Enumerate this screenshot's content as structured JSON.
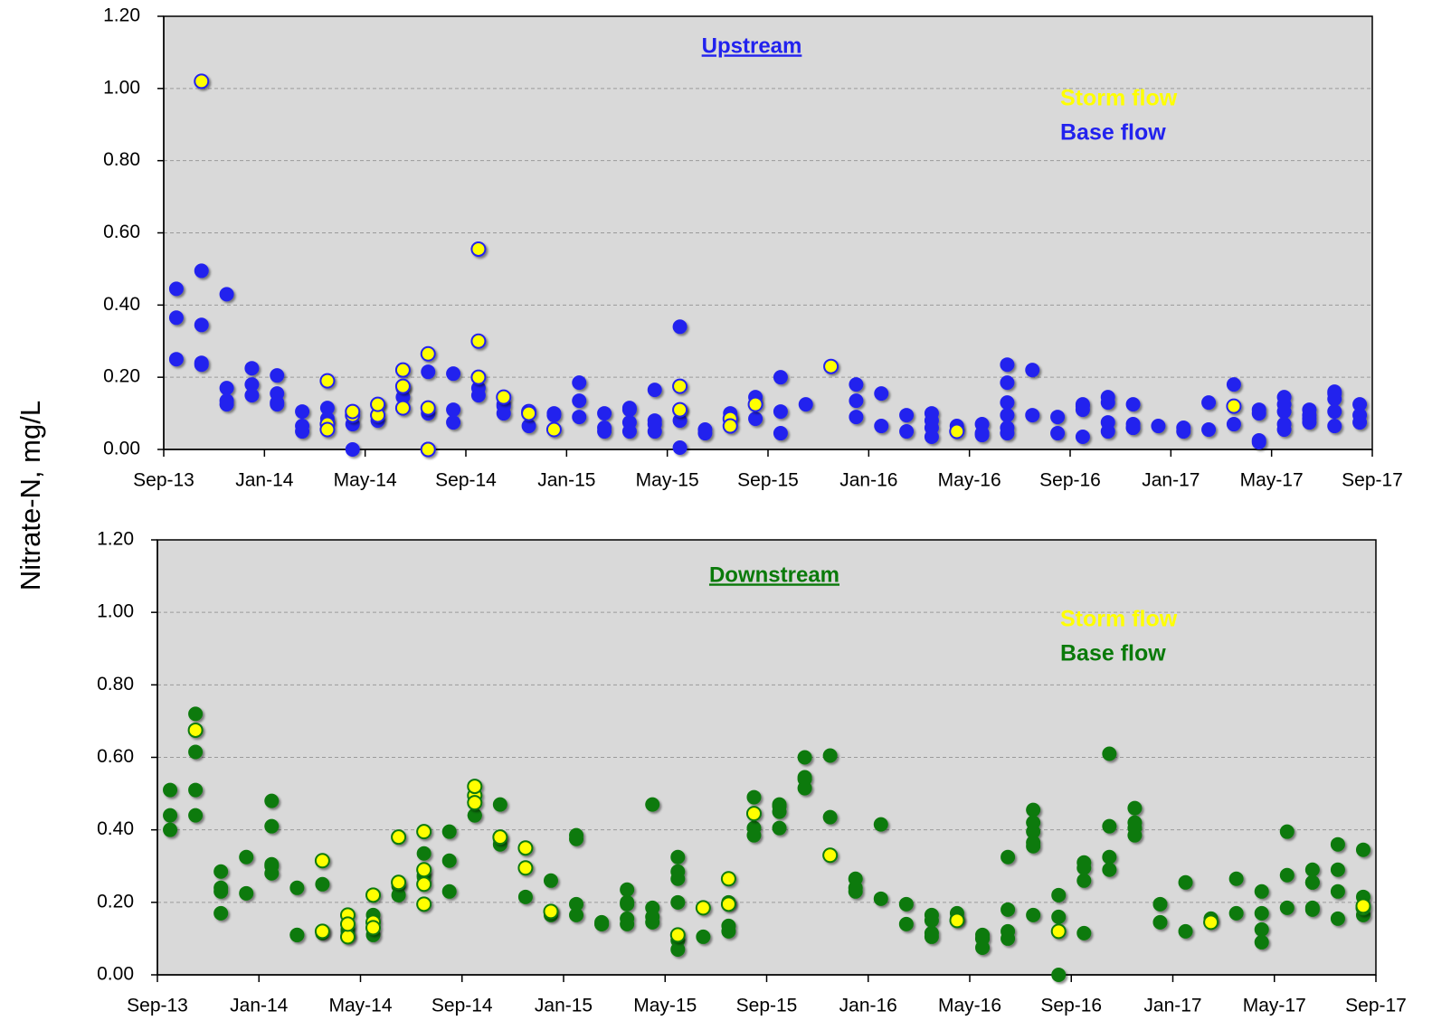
{
  "chart_data": [
    {
      "type": "scatter",
      "title": "Upstream",
      "ylabel": "Nitrate-N, mg/L",
      "xlim": [
        "2013-09",
        "2017-09"
      ],
      "xticks": [
        {
          "value": "2013-09",
          "label": "Sep-13"
        },
        {
          "value": "2014-01",
          "label": "Jan-14"
        },
        {
          "value": "2014-05",
          "label": "May-14"
        },
        {
          "value": "2014-09",
          "label": "Sep-14"
        },
        {
          "value": "2015-01",
          "label": "Jan-15"
        },
        {
          "value": "2015-05",
          "label": "May-15"
        },
        {
          "value": "2015-09",
          "label": "Sep-15"
        },
        {
          "value": "2016-01",
          "label": "Jan-16"
        },
        {
          "value": "2016-05",
          "label": "May-16"
        },
        {
          "value": "2016-09",
          "label": "Sep-16"
        },
        {
          "value": "2017-01",
          "label": "Jan-17"
        },
        {
          "value": "2017-05",
          "label": "May-17"
        },
        {
          "value": "2017-09",
          "label": "Sep-17"
        }
      ],
      "ylim": [
        0,
        1.2
      ],
      "yticks": [
        {
          "value": 0,
          "label": "0.00"
        },
        {
          "value": 0.2,
          "label": "0.20"
        },
        {
          "value": 0.4,
          "label": "0.40"
        },
        {
          "value": 0.6,
          "label": "0.60"
        },
        {
          "value": 0.8,
          "label": "0.80"
        },
        {
          "value": 1.0,
          "label": "1.00"
        },
        {
          "value": 1.2,
          "label": "1.20"
        }
      ],
      "grid": true,
      "series": [
        {
          "name": "Base flow",
          "color": "#2222ee",
          "x": [
            "2013-09",
            "2013-09",
            "2013-09",
            "2013-10",
            "2013-10",
            "2013-10",
            "2013-10",
            "2013-11",
            "2013-11",
            "2013-11",
            "2013-11",
            "2013-12",
            "2013-12",
            "2013-12",
            "2014-01",
            "2014-01",
            "2014-01",
            "2014-01",
            "2014-02",
            "2014-02",
            "2014-02",
            "2014-03",
            "2014-03",
            "2014-04",
            "2014-04",
            "2014-05",
            "2014-05",
            "2014-06",
            "2014-06",
            "2014-07",
            "2014-07",
            "2014-08",
            "2014-08",
            "2014-08",
            "2014-09",
            "2014-09",
            "2014-10",
            "2014-10",
            "2014-10",
            "2014-11",
            "2014-12",
            "2014-12",
            "2015-01",
            "2015-01",
            "2015-01",
            "2015-02",
            "2015-02",
            "2015-02",
            "2015-03",
            "2015-03",
            "2015-03",
            "2015-03",
            "2015-04",
            "2015-04",
            "2015-04",
            "2015-04",
            "2015-05",
            "2015-05",
            "2015-05",
            "2015-05",
            "2015-06",
            "2015-06",
            "2015-07",
            "2015-07",
            "2015-08",
            "2015-08",
            "2015-09",
            "2015-09",
            "2015-09",
            "2015-10",
            "2015-12",
            "2015-12",
            "2015-12",
            "2016-01",
            "2016-01",
            "2016-02",
            "2016-02",
            "2016-03",
            "2016-03",
            "2016-03",
            "2016-03",
            "2016-04",
            "2016-05",
            "2016-05",
            "2016-05",
            "2016-06",
            "2016-06",
            "2016-06",
            "2016-06",
            "2016-06",
            "2016-06",
            "2016-07",
            "2016-07",
            "2016-08",
            "2016-08",
            "2016-09",
            "2016-09",
            "2016-09",
            "2016-09",
            "2016-10",
            "2016-10",
            "2016-10",
            "2016-10",
            "2016-11",
            "2016-11",
            "2016-11",
            "2016-11",
            "2016-12",
            "2017-01",
            "2017-01",
            "2017-02",
            "2017-02",
            "2017-03",
            "2017-03",
            "2017-04",
            "2017-04",
            "2017-04",
            "2017-04",
            "2017-05",
            "2017-05",
            "2017-05",
            "2017-05",
            "2017-05",
            "2017-06",
            "2017-06",
            "2017-06",
            "2017-06",
            "2017-07",
            "2017-07",
            "2017-07",
            "2017-07",
            "2017-07",
            "2017-08",
            "2017-08",
            "2017-08"
          ],
          "values": [
            0.365,
            0.25,
            0.445,
            0.235,
            0.495,
            0.345,
            0.24,
            0.43,
            0.17,
            0.125,
            0.135,
            0.15,
            0.18,
            0.225,
            0.205,
            0.155,
            0.13,
            0.125,
            0.105,
            0.05,
            0.065,
            0.085,
            0.115,
            0,
            0.07,
            0.08,
            0.125,
            0.145,
            0.17,
            0.215,
            0.1,
            0.11,
            0.21,
            0.075,
            0.15,
            0.17,
            0.125,
            0.12,
            0.1,
            0.065,
            0.1,
            0.095,
            0.185,
            0.135,
            0.09,
            0.06,
            0.05,
            0.1,
            0.05,
            0.115,
            0.11,
            0.075,
            0.05,
            0.07,
            0.165,
            0.08,
            0.11,
            0.34,
            0.005,
            0.08,
            0.055,
            0.045,
            0.09,
            0.1,
            0.145,
            0.085,
            0.045,
            0.105,
            0.2,
            0.125,
            0.135,
            0.18,
            0.09,
            0.155,
            0.065,
            0.05,
            0.095,
            0.08,
            0.06,
            0.035,
            0.1,
            0.065,
            0.04,
            0.07,
            0.045,
            0.06,
            0.045,
            0.13,
            0.095,
            0.235,
            0.185,
            0.22,
            0.095,
            0.09,
            0.045,
            0.035,
            0.11,
            0.12,
            0.125,
            0.13,
            0.145,
            0.075,
            0.05,
            0.07,
            0.06,
            0.125,
            0.06,
            0.065,
            0.06,
            0.05,
            0.055,
            0.13,
            0.07,
            0.18,
            0.1,
            0.025,
            0.02,
            0.11,
            0.145,
            0.125,
            0.07,
            0.105,
            0.055,
            0.11,
            0.095,
            0.085,
            0.075,
            0.065,
            0.105,
            0.155,
            0.14,
            0.16,
            0.095,
            0.125,
            0.075
          ]
        },
        {
          "name": "Storm flow",
          "color": "#ffff00",
          "edgecolor": "#2222ee",
          "x": [
            "2013-10",
            "2014-03",
            "2014-03",
            "2014-03",
            "2014-04",
            "2014-04",
            "2014-05",
            "2014-05",
            "2014-06",
            "2014-06",
            "2014-06",
            "2014-07",
            "2014-07",
            "2014-07",
            "2014-07",
            "2014-09",
            "2014-09",
            "2014-09",
            "2014-10",
            "2014-11",
            "2014-11",
            "2014-12",
            "2015-05",
            "2015-05",
            "2015-07",
            "2015-07",
            "2015-08",
            "2015-11",
            "2016-04",
            "2017-03"
          ],
          "values": [
            1.02,
            0.19,
            0.07,
            0.055,
            0.095,
            0.105,
            0.095,
            0.125,
            0.175,
            0.22,
            0.115,
            0.265,
            0,
            0,
            0.115,
            0.3,
            0.2,
            0.555,
            0.145,
            0.105,
            0.1,
            0.055,
            0.175,
            0.11,
            0.085,
            0.065,
            0.125,
            0.23,
            0.05,
            0.12
          ]
        }
      ]
    },
    {
      "type": "scatter",
      "title": "Downstream",
      "xlim": [
        "2013-09",
        "2017-09"
      ],
      "xticks": [
        {
          "value": "2013-09",
          "label": "Sep-13"
        },
        {
          "value": "2014-01",
          "label": "Jan-14"
        },
        {
          "value": "2014-05",
          "label": "May-14"
        },
        {
          "value": "2014-09",
          "label": "Sep-14"
        },
        {
          "value": "2015-01",
          "label": "Jan-15"
        },
        {
          "value": "2015-05",
          "label": "May-15"
        },
        {
          "value": "2015-09",
          "label": "Sep-15"
        },
        {
          "value": "2016-01",
          "label": "Jan-16"
        },
        {
          "value": "2016-05",
          "label": "May-16"
        },
        {
          "value": "2016-09",
          "label": "Sep-16"
        },
        {
          "value": "2017-01",
          "label": "Jan-17"
        },
        {
          "value": "2017-05",
          "label": "May-17"
        },
        {
          "value": "2017-09",
          "label": "Sep-17"
        }
      ],
      "ylim": [
        0,
        1.2
      ],
      "yticks": [
        {
          "value": 0,
          "label": "0.00"
        },
        {
          "value": 0.2,
          "label": "0.20"
        },
        {
          "value": 0.4,
          "label": "0.40"
        },
        {
          "value": 0.6,
          "label": "0.60"
        },
        {
          "value": 0.8,
          "label": "0.80"
        },
        {
          "value": 1.0,
          "label": "1.00"
        },
        {
          "value": 1.2,
          "label": "1.20"
        }
      ],
      "grid": true,
      "series": [
        {
          "name": "Base flow",
          "color": "#0a7a0a",
          "x": [
            "2013-09",
            "2013-09",
            "2013-09",
            "2013-10",
            "2013-10",
            "2013-10",
            "2013-10",
            "2013-11",
            "2013-11",
            "2013-11",
            "2013-11",
            "2013-12",
            "2013-12",
            "2014-01",
            "2014-01",
            "2014-01",
            "2014-01",
            "2014-01",
            "2014-02",
            "2014-02",
            "2014-02",
            "2014-03",
            "2014-03",
            "2014-03",
            "2014-04",
            "2014-04",
            "2014-04",
            "2014-05",
            "2014-05",
            "2014-06",
            "2014-06",
            "2014-07",
            "2014-07",
            "2014-07",
            "2014-08",
            "2014-08",
            "2014-08",
            "2014-09",
            "2014-09",
            "2014-10",
            "2014-10",
            "2014-10",
            "2014-11",
            "2014-12",
            "2014-12",
            "2014-12",
            "2015-01",
            "2015-01",
            "2015-01",
            "2015-01",
            "2015-02",
            "2015-02",
            "2015-02",
            "2015-03",
            "2015-03",
            "2015-03",
            "2015-03",
            "2015-03",
            "2015-04",
            "2015-04",
            "2015-04",
            "2015-04",
            "2015-05",
            "2015-05",
            "2015-05",
            "2015-05",
            "2015-05",
            "2015-05",
            "2015-06",
            "2015-07",
            "2015-07",
            "2015-07",
            "2015-08",
            "2015-08",
            "2015-08",
            "2015-09",
            "2015-09",
            "2015-09",
            "2015-09",
            "2015-10",
            "2015-10",
            "2015-10",
            "2015-10",
            "2015-11",
            "2015-11",
            "2015-12",
            "2015-12",
            "2015-12",
            "2016-01",
            "2016-01",
            "2016-02",
            "2016-02",
            "2016-03",
            "2016-03",
            "2016-03",
            "2016-03",
            "2016-04",
            "2016-04",
            "2016-05",
            "2016-05",
            "2016-05",
            "2016-05",
            "2016-06",
            "2016-06",
            "2016-06",
            "2016-06",
            "2016-07",
            "2016-07",
            "2016-07",
            "2016-07",
            "2016-07",
            "2016-07",
            "2016-08",
            "2016-08",
            "2016-08",
            "2016-09",
            "2016-09",
            "2016-09",
            "2016-09",
            "2016-10",
            "2016-10",
            "2016-10",
            "2016-10",
            "2016-11",
            "2016-11",
            "2016-11",
            "2016-11",
            "2016-12",
            "2016-12",
            "2017-01",
            "2017-01",
            "2017-02",
            "2017-02",
            "2017-03",
            "2017-03",
            "2017-04",
            "2017-04",
            "2017-04",
            "2017-04",
            "2017-05",
            "2017-05",
            "2017-05",
            "2017-06",
            "2017-06",
            "2017-06",
            "2017-06",
            "2017-06",
            "2017-07",
            "2017-07",
            "2017-07",
            "2017-07",
            "2017-08",
            "2017-08",
            "2017-08"
          ],
          "values": [
            0.4,
            0.44,
            0.51,
            0.51,
            0.615,
            0.72,
            0.44,
            0.285,
            0.24,
            0.17,
            0.23,
            0.225,
            0.325,
            0.48,
            0.41,
            0.305,
            0.3,
            0.28,
            0.24,
            0.11,
            0.11,
            0.115,
            0.12,
            0.25,
            0.11,
            0.12,
            0.125,
            0.165,
            0.11,
            0.22,
            0.245,
            0.335,
            0.27,
            0.275,
            0.23,
            0.315,
            0.395,
            0.44,
            0.44,
            0.47,
            0.375,
            0.36,
            0.215,
            0.26,
            0.165,
            0.175,
            0.375,
            0.385,
            0.195,
            0.165,
            0.14,
            0.145,
            0.14,
            0.195,
            0.2,
            0.235,
            0.155,
            0.14,
            0.145,
            0.47,
            0.16,
            0.185,
            0.265,
            0.285,
            0.07,
            0.325,
            0.2,
            0.095,
            0.105,
            0.135,
            0.2,
            0.12,
            0.405,
            0.385,
            0.49,
            0.465,
            0.405,
            0.45,
            0.47,
            0.515,
            0.6,
            0.545,
            0.54,
            0.605,
            0.435,
            0.265,
            0.23,
            0.24,
            0.415,
            0.21,
            0.195,
            0.14,
            0.115,
            0.165,
            0.105,
            0.15,
            0.17,
            0.155,
            0.075,
            0.1,
            0.11,
            0.1,
            0.1,
            0.12,
            0.18,
            0.325,
            0.395,
            0.455,
            0.165,
            0.365,
            0.355,
            0.42,
            0.22,
            0.16,
            0,
            0.115,
            0.26,
            0.31,
            0.295,
            0.41,
            0.61,
            0.325,
            0.29,
            0.385,
            0.42,
            0.405,
            0.46,
            0.145,
            0.195,
            0.255,
            0.12,
            0.155,
            0.155,
            0.265,
            0.17,
            0.17,
            0.09,
            0.125,
            0.23,
            0.275,
            0.395,
            0.185,
            0.29,
            0.185,
            0.18,
            0.255,
            0.255,
            0.29,
            0.155,
            0.23,
            0.36,
            0.345,
            0.215,
            0.165
          ]
        },
        {
          "name": "Storm flow",
          "color": "#ffff00",
          "edgecolor": "#0a7a0a",
          "x": [
            "2013-10",
            "2014-03",
            "2014-03",
            "2014-04",
            "2014-04",
            "2014-04",
            "2014-05",
            "2014-05",
            "2014-05",
            "2014-06",
            "2014-06",
            "2014-07",
            "2014-07",
            "2014-07",
            "2014-07",
            "2014-09",
            "2014-09",
            "2014-09",
            "2014-10",
            "2014-11",
            "2014-11",
            "2014-12",
            "2015-05",
            "2015-06",
            "2015-07",
            "2015-07",
            "2015-08",
            "2015-11",
            "2016-04",
            "2016-08",
            "2017-02",
            "2017-08",
            "2017-08"
          ],
          "values": [
            0.675,
            0.315,
            0.12,
            0.105,
            0.165,
            0.14,
            0.145,
            0.13,
            0.22,
            0.255,
            0.38,
            0.395,
            0.29,
            0.195,
            0.25,
            0.495,
            0.475,
            0.52,
            0.38,
            0.35,
            0.295,
            0.175,
            0.11,
            0.185,
            0.195,
            0.265,
            0.445,
            0.33,
            0.15,
            0.12,
            0.145,
            0.185,
            0.19
          ]
        }
      ]
    }
  ]
}
